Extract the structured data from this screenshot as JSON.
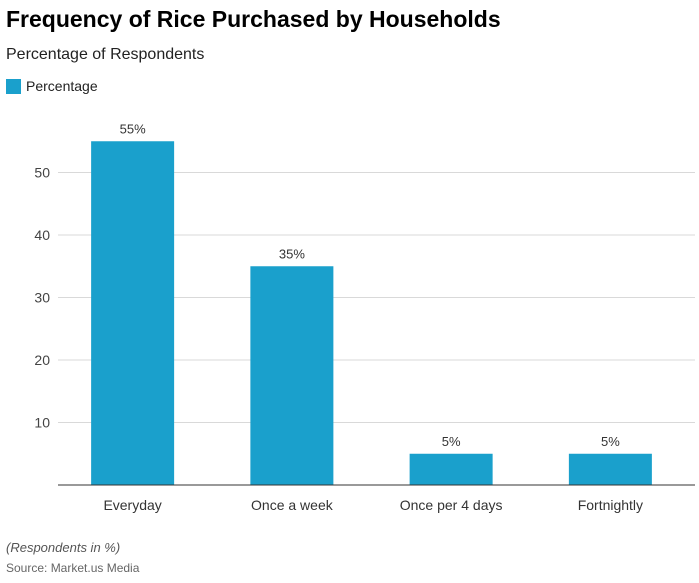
{
  "chart_data": {
    "type": "bar",
    "title": "Frequency of Rice Purchased by Households",
    "subtitle": "Percentage of Respondents",
    "categories": [
      "Everyday",
      "Once a week",
      "Once per 4 days",
      "Fortnightly"
    ],
    "series": [
      {
        "name": "Percentage",
        "values": [
          55,
          35,
          5,
          5
        ],
        "labels": [
          "55%",
          "35%",
          "5%",
          "5%"
        ]
      }
    ],
    "yticks": [
      10,
      20,
      30,
      40,
      50
    ],
    "ylim": [
      0,
      60
    ],
    "grid": true,
    "legend": "top-left",
    "color": "#1aa0cc"
  },
  "footer": {
    "note": "(Respondents in %)",
    "source": "Source: Market.us Media"
  }
}
